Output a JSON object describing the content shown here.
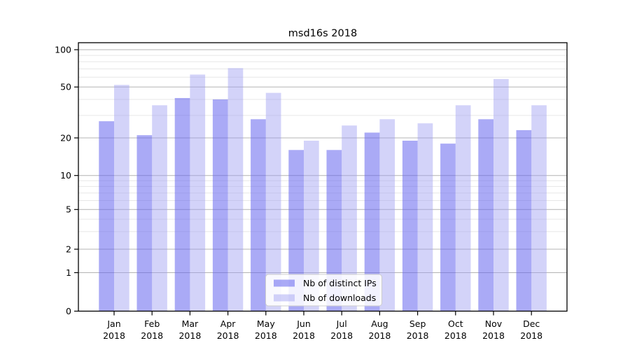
{
  "chart_data": {
    "type": "bar",
    "title": "msd16s 2018",
    "year_label": "2018",
    "categories": [
      "Jan",
      "Feb",
      "Mar",
      "Apr",
      "May",
      "Jun",
      "Jul",
      "Aug",
      "Sep",
      "Oct",
      "Nov",
      "Dec"
    ],
    "series": [
      {
        "name": "Nb of distinct IPs",
        "color": "#6464ee",
        "fill_opacity": 0.55,
        "values": [
          27,
          21,
          41,
          40,
          28,
          16,
          16,
          22,
          19,
          18,
          28,
          23
        ]
      },
      {
        "name": "Nb of downloads",
        "color": "#9e9ef2",
        "fill_opacity": 0.45,
        "values": [
          52,
          36,
          63,
          71,
          45,
          19,
          25,
          28,
          26,
          36,
          58,
          36
        ]
      }
    ],
    "yscale": "symlog",
    "y_ticks": [
      0,
      1,
      2,
      5,
      10,
      20,
      50,
      100
    ],
    "y_minor_ticks": [
      3,
      4,
      6,
      7,
      8,
      9,
      30,
      40,
      60,
      70,
      80,
      90
    ],
    "ylim": [
      0,
      110
    ],
    "grid": "on",
    "legend_position": "lower center",
    "colors": {
      "major_grid": "#b4b4b4",
      "minor_grid": "#e7e7e7",
      "axis": "#000000",
      "legend_border": "#cccccc",
      "legend_bg": "#ffffff"
    }
  }
}
